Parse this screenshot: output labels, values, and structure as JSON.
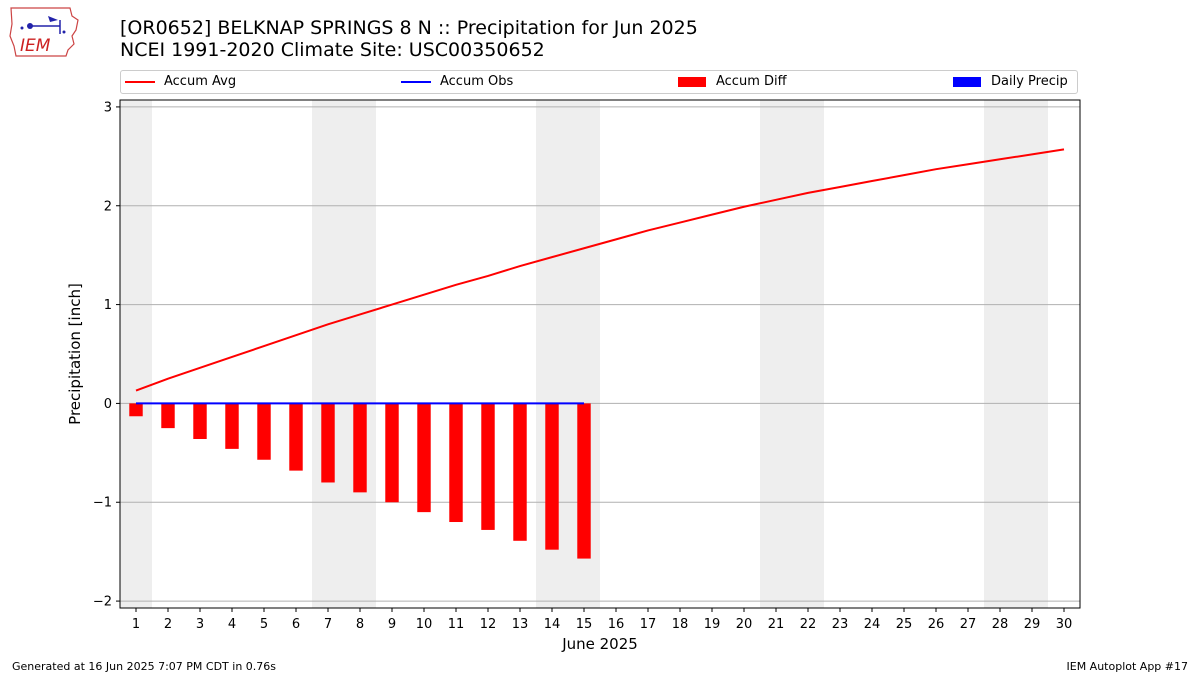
{
  "title_line1": "[OR0652] BELKNAP SPRINGS 8 N :: Precipitation for Jun 2025",
  "title_line2": "NCEI 1991-2020 Climate Site: USC00350652",
  "logo_text": "IEM",
  "footer_left": "Generated at 16 Jun 2025 7:07 PM CDT in 0.76s",
  "footer_right": "IEM Autoplot App #17",
  "colors": {
    "accum_avg": "#ff0000",
    "accum_obs": "#0000ff",
    "accum_diff": "#ff0000",
    "daily_precip": "#0000ff",
    "weekend_shade": "#eeeeee",
    "grid": "#b0b0b0"
  },
  "chart_data": {
    "type": "bar",
    "xlabel": "June 2025",
    "ylabel": "Precipitation [inch]",
    "xlim": [
      0.5,
      30.5
    ],
    "ylim": [
      -2.07,
      3.07
    ],
    "yticks": [
      -2,
      -1,
      0,
      1,
      2,
      3
    ],
    "ytick_labels": [
      "−2",
      "−1",
      "0",
      "1",
      "2",
      "3"
    ],
    "x": [
      1,
      2,
      3,
      4,
      5,
      6,
      7,
      8,
      9,
      10,
      11,
      12,
      13,
      14,
      15,
      16,
      17,
      18,
      19,
      20,
      21,
      22,
      23,
      24,
      25,
      26,
      27,
      28,
      29,
      30
    ],
    "xtick_labels": [
      "1",
      "2",
      "3",
      "4",
      "5",
      "6",
      "7",
      "8",
      "9",
      "10",
      "11",
      "12",
      "13",
      "14",
      "15",
      "16",
      "17",
      "18",
      "19",
      "20",
      "21",
      "22",
      "23",
      "24",
      "25",
      "26",
      "27",
      "28",
      "29",
      "30"
    ],
    "grid": "horizontal",
    "legend_position": "top",
    "weekend_days": [
      1,
      7,
      8,
      14,
      15,
      21,
      22,
      28,
      29
    ],
    "series": [
      {
        "name": "Accum Avg",
        "kind": "line",
        "x": [
          1,
          2,
          3,
          4,
          5,
          6,
          7,
          8,
          9,
          10,
          11,
          12,
          13,
          14,
          15,
          16,
          17,
          18,
          19,
          20,
          21,
          22,
          23,
          24,
          25,
          26,
          27,
          28,
          29,
          30
        ],
        "values": [
          0.13,
          0.25,
          0.36,
          0.47,
          0.58,
          0.69,
          0.8,
          0.9,
          1.0,
          1.1,
          1.2,
          1.29,
          1.39,
          1.48,
          1.57,
          1.66,
          1.75,
          1.83,
          1.91,
          1.99,
          2.06,
          2.13,
          2.19,
          2.25,
          2.31,
          2.37,
          2.42,
          2.47,
          2.52,
          2.57
        ]
      },
      {
        "name": "Accum Obs",
        "kind": "line",
        "x": [
          1,
          2,
          3,
          4,
          5,
          6,
          7,
          8,
          9,
          10,
          11,
          12,
          13,
          14,
          15
        ],
        "values": [
          0,
          0,
          0,
          0,
          0,
          0,
          0,
          0,
          0,
          0,
          0,
          0,
          0,
          0,
          0
        ]
      },
      {
        "name": "Accum Diff",
        "kind": "bar",
        "x": [
          1,
          2,
          3,
          4,
          5,
          6,
          7,
          8,
          9,
          10,
          11,
          12,
          13,
          14,
          15
        ],
        "values": [
          -0.13,
          -0.25,
          -0.36,
          -0.46,
          -0.57,
          -0.68,
          -0.8,
          -0.9,
          -1.0,
          -1.1,
          -1.2,
          -1.28,
          -1.39,
          -1.48,
          -1.57
        ]
      },
      {
        "name": "Daily Precip",
        "kind": "bar",
        "x": [
          1,
          2,
          3,
          4,
          5,
          6,
          7,
          8,
          9,
          10,
          11,
          12,
          13,
          14,
          15
        ],
        "values": [
          0,
          0,
          0,
          0,
          0,
          0,
          0,
          0,
          0,
          0,
          0,
          0,
          0,
          0,
          0
        ]
      }
    ]
  }
}
